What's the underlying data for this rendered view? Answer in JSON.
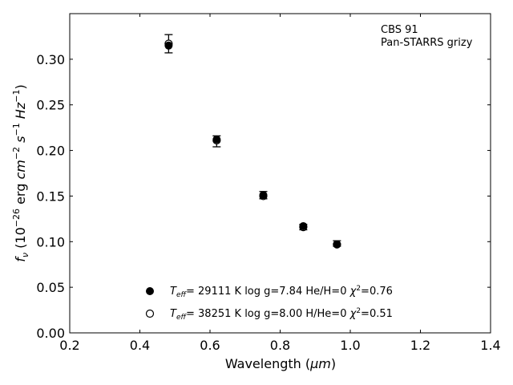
{
  "chart_data": {
    "type": "scatter",
    "xlabel_prefix": "Wavelength (",
    "xlabel_unit": "μm",
    "xlabel_suffix": ")",
    "ylabel": "fν (10⁻²⁶ erg cm⁻² s⁻¹ Hz⁻¹)",
    "xlim": [
      0.2,
      1.4
    ],
    "ylim": [
      0.0,
      0.35
    ],
    "xticks": [
      "0.2",
      "0.4",
      "0.6",
      "0.8",
      "1.0",
      "1.2",
      "1.4"
    ],
    "yticks": [
      "0.00",
      "0.05",
      "0.10",
      "0.15",
      "0.20",
      "0.25",
      "0.30"
    ],
    "annotation": [
      "CBS 91",
      "Pan-STARRS grizy"
    ],
    "observed": [
      {
        "x": 0.482,
        "y": 0.317,
        "err": 0.01
      },
      {
        "x": 0.619,
        "y": 0.21,
        "err": 0.006
      },
      {
        "x": 0.752,
        "y": 0.151,
        "err": 0.004
      },
      {
        "x": 0.866,
        "y": 0.116,
        "err": 0.003
      },
      {
        "x": 0.962,
        "y": 0.098,
        "err": 0.003
      }
    ],
    "model_filled": [
      {
        "x": 0.482,
        "y": 0.315
      },
      {
        "x": 0.619,
        "y": 0.212
      },
      {
        "x": 0.752,
        "y": 0.151
      },
      {
        "x": 0.866,
        "y": 0.117
      },
      {
        "x": 0.962,
        "y": 0.097
      }
    ],
    "model_open": [
      {
        "x": 0.482,
        "y": 0.317
      },
      {
        "x": 0.619,
        "y": 0.211
      },
      {
        "x": 0.752,
        "y": 0.15
      },
      {
        "x": 0.866,
        "y": 0.116
      },
      {
        "x": 0.962,
        "y": 0.097
      }
    ],
    "legend": [
      {
        "marker": "filled",
        "T": "= 29111 K",
        "logg": "log g=7.84",
        "comp": "He/H=0",
        "chi2": "=0.76"
      },
      {
        "marker": "open",
        "T": "= 38251 K",
        "logg": "log g=8.00",
        "comp": "H/He=0",
        "chi2": "=0.51"
      }
    ],
    "grid": false,
    "legend_placement": "lower-center"
  }
}
